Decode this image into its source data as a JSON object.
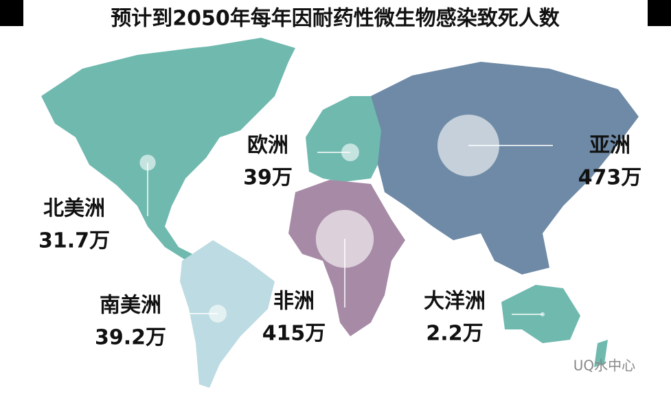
{
  "title": "预计到2050年每年因耐药性微生物感染致死人数",
  "regions": [
    {
      "name": "北美洲",
      "value": 31.7,
      "value_label": "31.7万"
    },
    {
      "name": "欧洲",
      "value": 39,
      "value_label": "39万"
    },
    {
      "name": "亚洲",
      "value": 473,
      "value_label": "473万"
    },
    {
      "name": "非洲",
      "value": 415,
      "value_label": "415万"
    },
    {
      "name": "南美洲",
      "value": 39.2,
      "value_label": "39.2万"
    },
    {
      "name": "大洋洲",
      "value": 2.2,
      "value_label": "2.2万"
    }
  ],
  "watermark": "UQ水中心"
}
